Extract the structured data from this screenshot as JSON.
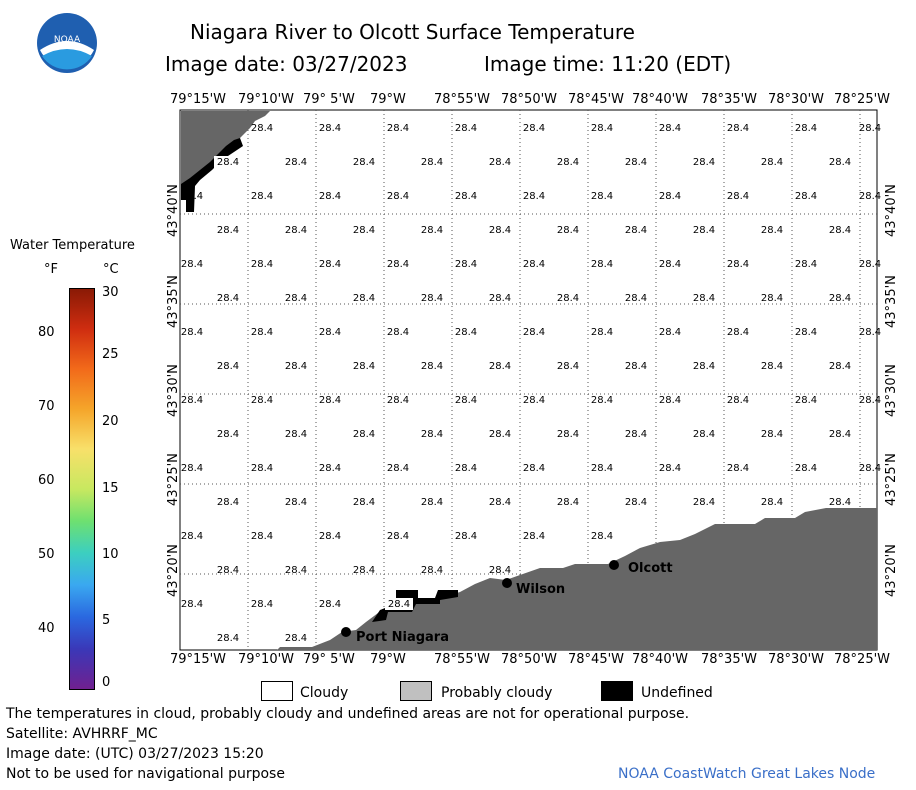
{
  "header": {
    "title": "Niagara River to Olcott Surface Temperature",
    "image_date_label": "Image date: 03/27/2023",
    "image_time_label": "Image time: 11:20 (EDT)"
  },
  "logo": {
    "text": "NOAA"
  },
  "legend": {
    "title": "Water Temperature",
    "unit_f": "°F",
    "unit_c": "°C",
    "f_ticks": [
      "80",
      "70",
      "60",
      "50",
      "40"
    ],
    "c_ticks": [
      "30",
      "25",
      "20",
      "15",
      "10",
      "5",
      "0"
    ]
  },
  "map": {
    "lon_labels": [
      "79°15'W",
      "79°10'W",
      "79° 5'W",
      "79°W",
      "78°55'W",
      "78°50'W",
      "78°45'W",
      "78°40'W",
      "78°35'W",
      "78°30'W",
      "78°25'W"
    ],
    "lat_labels": [
      "43°40'N",
      "43°35'N",
      "43°30'N",
      "43°25'N",
      "43°20'N"
    ],
    "temp_value": "28.4",
    "places": [
      {
        "name": "Port Niagara"
      },
      {
        "name": "Wilson"
      },
      {
        "name": "Olcott"
      }
    ],
    "land_color": "#666666",
    "undefined_color": "#000000"
  },
  "key": {
    "cloudy": "Cloudy",
    "probably_cloudy": "Probably cloudy",
    "undefined": "Undefined"
  },
  "footer": {
    "note": "The temperatures in cloud, probably cloudy and undefined areas are not for operational purpose.",
    "satellite": "Satellite: AVHRRF_MC",
    "utc_date": "Image date: (UTC) 03/27/2023  15:20",
    "nav": "Not to be used for navigational purpose",
    "credit": "NOAA CoastWatch Great Lakes Node"
  }
}
